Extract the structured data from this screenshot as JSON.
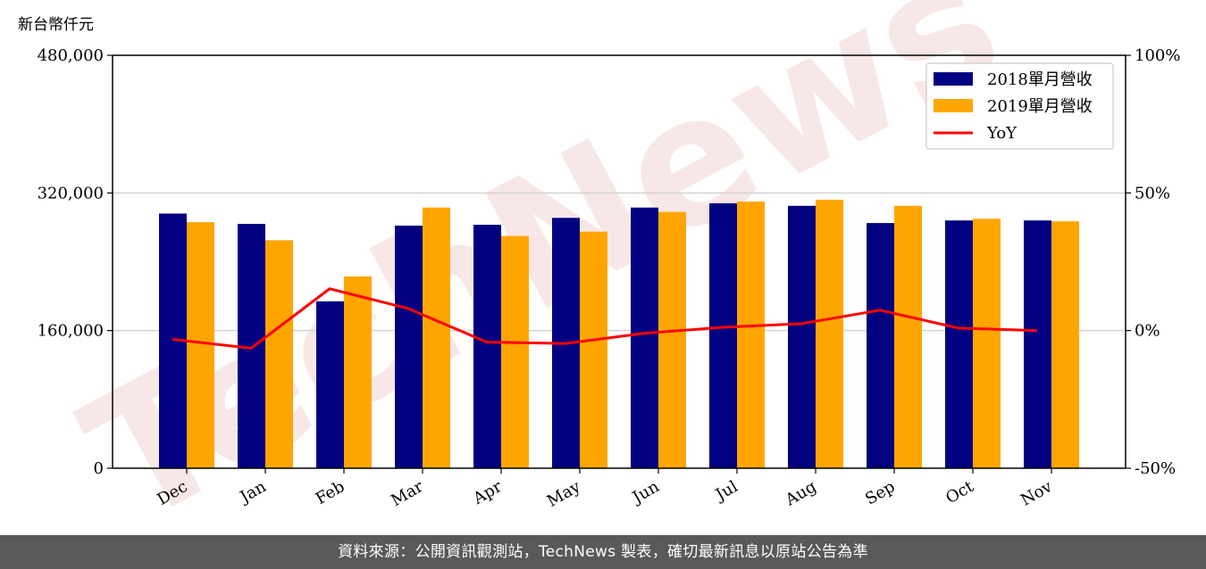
{
  "chart_data": {
    "type": "bar",
    "unit_label": "新台幣仟元",
    "categories": [
      "Dec",
      "Jan",
      "Feb",
      "Mar",
      "Apr",
      "May",
      "Jun",
      "Jul",
      "Aug",
      "Sep",
      "Oct",
      "Nov"
    ],
    "series": [
      {
        "name": "2018單月營收",
        "type": "bar",
        "axis": "left",
        "color": "#000080",
        "values": [
          296000,
          284000,
          194000,
          282000,
          283000,
          291000,
          303000,
          308000,
          305000,
          285000,
          288000,
          288000
        ]
      },
      {
        "name": "2019單月營收",
        "type": "bar",
        "axis": "left",
        "color": "#ffa500",
        "values": [
          286000,
          265000,
          223000,
          303000,
          270000,
          275000,
          298000,
          310000,
          312000,
          305000,
          290000,
          287000
        ]
      },
      {
        "name": "YoY",
        "type": "line",
        "axis": "right",
        "color": "#ff0000",
        "values": [
          -3.2,
          -6.4,
          15.2,
          8.0,
          -4.2,
          -4.7,
          -1.0,
          1.2,
          2.5,
          7.4,
          0.9,
          0.0
        ]
      }
    ],
    "y_left": {
      "ticks": [
        0,
        160000,
        320000,
        480000
      ],
      "tick_labels": [
        "0",
        "160,000",
        "320,000",
        "480,000"
      ],
      "range": [
        0,
        480000
      ]
    },
    "y_right": {
      "ticks": [
        -50,
        0,
        50,
        100
      ],
      "tick_labels": [
        "-50%",
        "0%",
        "50%",
        "100%"
      ],
      "range": [
        -50,
        100
      ]
    },
    "grid": "horizontal",
    "legend_position": "top-right"
  },
  "watermark": "TechNews",
  "footer": {
    "text": "資料來源：公開資訊觀測站，TechNews 製表，確切最新訊息以原站公告為準"
  }
}
